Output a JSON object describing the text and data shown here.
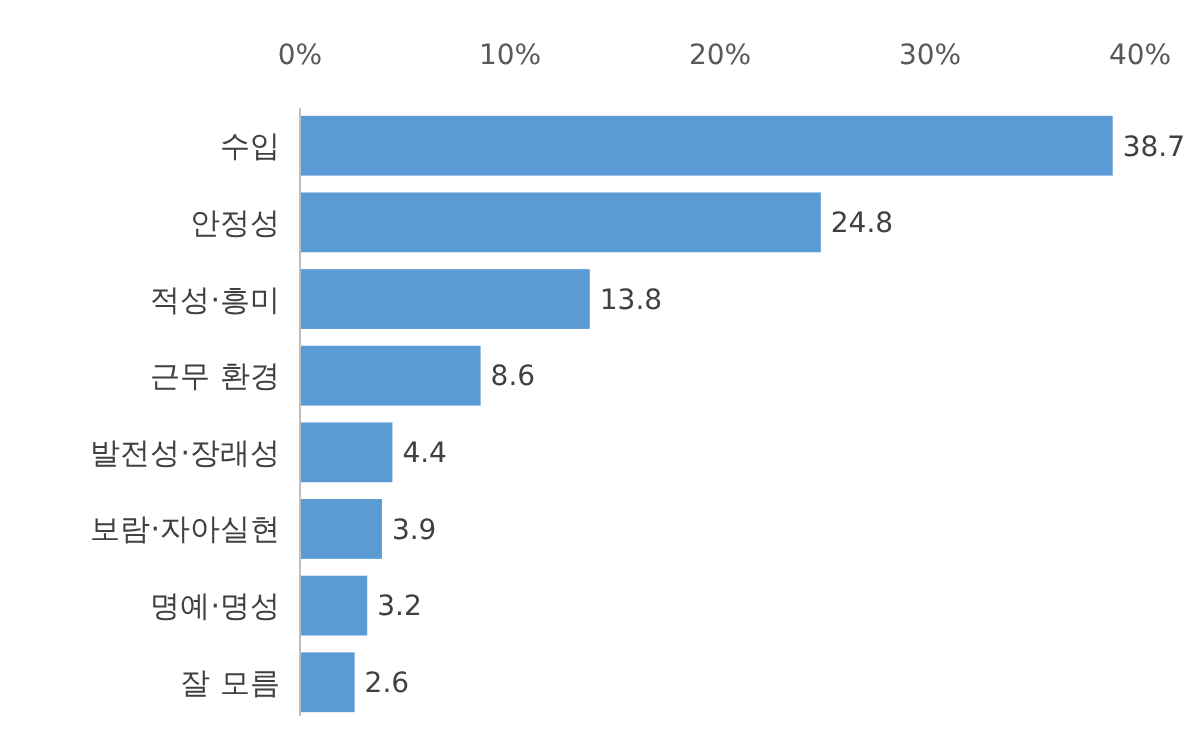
{
  "chart_data": {
    "type": "bar",
    "orientation": "horizontal",
    "categories": [
      "수입",
      "안정성",
      "적성·흥미",
      "근무 환경",
      "발전성·장래성",
      "보람·자아실현",
      "명예·명성",
      "잘 모름"
    ],
    "values": [
      38.7,
      24.8,
      13.8,
      8.6,
      4.4,
      3.9,
      3.2,
      2.6
    ],
    "color": "#5b9bd5",
    "xlim": [
      0,
      40
    ],
    "xticks": [
      {
        "value": 0,
        "label": "0%"
      },
      {
        "value": 10,
        "label": "10%"
      },
      {
        "value": 20,
        "label": "20%"
      },
      {
        "value": 30,
        "label": "30%"
      },
      {
        "value": 40,
        "label": "40%"
      }
    ],
    "data_labels": true,
    "grid": false
  }
}
